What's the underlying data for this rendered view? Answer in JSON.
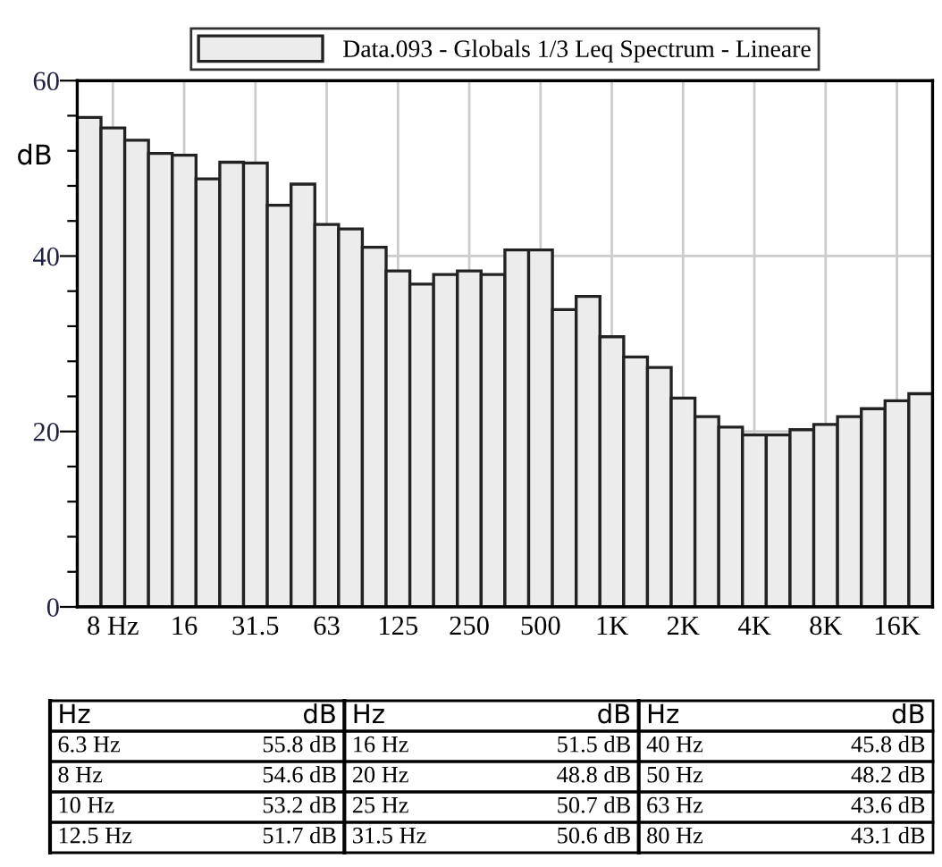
{
  "chart_data": {
    "type": "bar",
    "series": [
      {
        "name": "Data.093 - Globals 1/3 Leq Spectrum - Lineare",
        "color": "#ececec",
        "values": [
          55.8,
          54.6,
          53.2,
          51.7,
          51.5,
          48.8,
          50.7,
          50.6,
          45.8,
          48.2,
          43.6,
          43.1,
          41.0,
          38.3,
          36.8,
          37.9,
          38.3,
          37.9,
          40.7,
          40.7,
          33.9,
          35.4,
          30.8,
          28.5,
          27.3,
          23.8,
          21.7,
          20.5,
          19.6,
          19.6,
          20.2,
          20.8,
          21.7,
          22.6,
          23.5,
          24.3
        ]
      }
    ],
    "categories": [
      null,
      "8 Hz",
      null,
      null,
      "16",
      null,
      null,
      "31.5",
      null,
      null,
      "63",
      null,
      null,
      "125",
      null,
      null,
      "250",
      null,
      null,
      "500",
      null,
      null,
      "1K",
      null,
      null,
      "2K",
      null,
      null,
      "4K",
      null,
      null,
      "8K",
      null,
      null,
      "16K",
      null
    ],
    "ylabel": "dB",
    "ylim": [
      0,
      60
    ],
    "yticks": [
      0,
      {
        "value": 4,
        "label": null
      },
      {
        "value": 8,
        "label": null
      },
      {
        "value": 12,
        "label": null
      },
      {
        "value": 16,
        "label": null
      },
      20,
      {
        "value": 24,
        "label": null
      },
      {
        "value": 28,
        "label": null
      },
      {
        "value": 32,
        "label": null
      },
      {
        "value": 36,
        "label": null
      },
      40,
      {
        "value": 44,
        "label": null
      },
      {
        "value": 48,
        "label": null
      },
      {
        "value": 52,
        "label": null
      },
      {
        "value": 56,
        "label": null
      },
      60
    ],
    "grid": true,
    "legend": "top",
    "annotations": [
      "Hz",
      "6.3 Hz",
      "55.8 dB",
      "8 Hz",
      "54.6 dB",
      "10 Hz",
      "53.2 dB",
      "12.5 Hz",
      "51.7 dB",
      "16 Hz",
      "51.5 dB",
      "20 Hz",
      "48.8 dB",
      "25 Hz",
      "50.7 dB",
      "31.5 Hz",
      "50.6 dB",
      "40 Hz",
      "45.8 dB",
      "50 Hz",
      "48.2 dB",
      "63 Hz",
      "43.6 dB",
      "80 Hz",
      "43.1 dB"
    ]
  }
}
